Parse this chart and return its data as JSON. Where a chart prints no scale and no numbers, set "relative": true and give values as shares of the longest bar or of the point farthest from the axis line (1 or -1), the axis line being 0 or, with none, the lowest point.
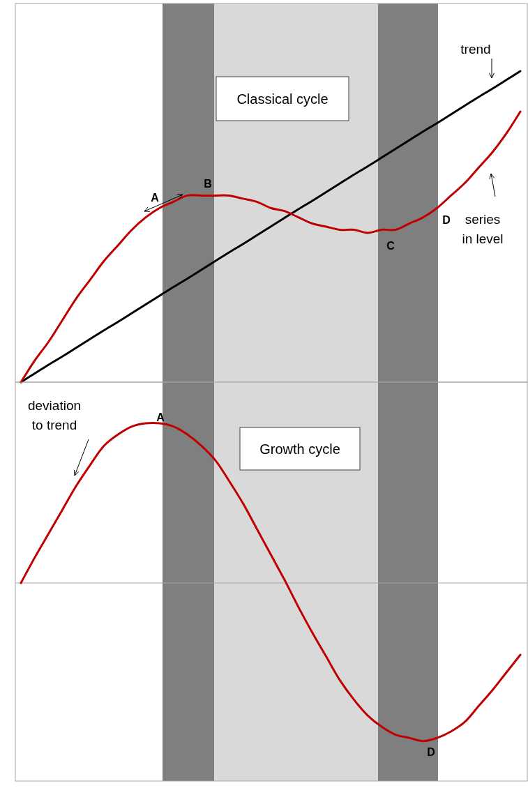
{
  "chart_data": [
    {
      "type": "line",
      "title": "Classical cycle",
      "relative": true,
      "categories": [
        null,
        null,
        null,
        null,
        null,
        null,
        null,
        null,
        null,
        null,
        null,
        null,
        null,
        null,
        null,
        null,
        null,
        null,
        null,
        null,
        null,
        null,
        null,
        null,
        null,
        null,
        null,
        null,
        null,
        null,
        null,
        null,
        null,
        null,
        null,
        null,
        null
      ],
      "series": [
        {
          "color": "#000000",
          "values": [
            0,
            0.028,
            0.056,
            0.083,
            0.111,
            0.139,
            0.167,
            0.194,
            0.222,
            0.25,
            0.278,
            0.306,
            0.333,
            0.361,
            0.389,
            0.417,
            0.444,
            0.472,
            0.5,
            0.528,
            0.556,
            0.583,
            0.611,
            0.639,
            0.667,
            0.694,
            0.722,
            0.75,
            0.778,
            0.806,
            0.833,
            0.861,
            0.889,
            0.917,
            0.944,
            0.972,
            1
          ]
        },
        {
          "color": "#c00000",
          "values": [
            0,
            0.07,
            0.13,
            0.2,
            0.27,
            0.33,
            0.39,
            0.44,
            0.49,
            0.53,
            0.56,
            0.58,
            0.6,
            0.6,
            0.6,
            0.6,
            0.59,
            0.58,
            0.56,
            0.55,
            0.53,
            0.51,
            0.5,
            0.49,
            0.49,
            0.48,
            0.49,
            0.49,
            0.51,
            0.53,
            0.56,
            0.6,
            0.64,
            0.69,
            0.74,
            0.8,
            0.87
          ]
        }
      ],
      "annotations": [
        "trend",
        "series in level",
        "A",
        "B",
        "C",
        "D"
      ]
    },
    {
      "type": "line",
      "title": "Growth cycle",
      "relative": true,
      "categories": [
        null,
        null,
        null,
        null,
        null,
        null,
        null,
        null,
        null,
        null,
        null,
        null,
        null,
        null,
        null,
        null,
        null,
        null,
        null,
        null,
        null,
        null,
        null,
        null,
        null,
        null,
        null,
        null,
        null,
        null,
        null,
        null,
        null,
        null,
        null,
        null,
        null
      ],
      "series": [
        {
          "color": "#c00000",
          "values": [
            0,
            0.16,
            0.31,
            0.46,
            0.61,
            0.74,
            0.86,
            0.93,
            0.98,
            1,
            1,
            0.98,
            0.93,
            0.86,
            0.77,
            0.64,
            0.5,
            0.34,
            0.18,
            0.02,
            -0.15,
            -0.31,
            -0.46,
            -0.61,
            -0.73,
            -0.83,
            -0.9,
            -0.95,
            -0.97,
            -0.99,
            -0.97,
            -0.93,
            -0.87,
            -0.77,
            -0.67,
            -0.56,
            -0.45
          ]
        }
      ],
      "annotations": [
        "deviation to trend",
        "A",
        "D"
      ]
    }
  ]
}
